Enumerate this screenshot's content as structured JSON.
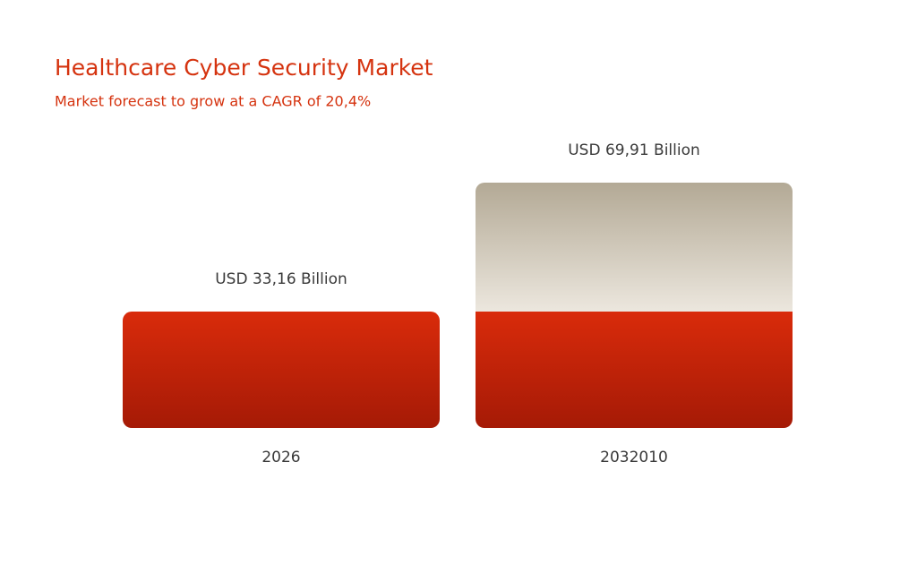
{
  "chart_data": {
    "type": "bar",
    "title": "Healthcare Cyber Security Market",
    "subtitle": "Market forecast to grow at a CAGR of 20,4%",
    "categories": [
      "2026",
      "2032010"
    ],
    "values": [
      33.16,
      69.91
    ],
    "value_labels": [
      "USD 33,16 Billion",
      "USD 69,91 Billion"
    ],
    "color": "#d92b0b"
  }
}
